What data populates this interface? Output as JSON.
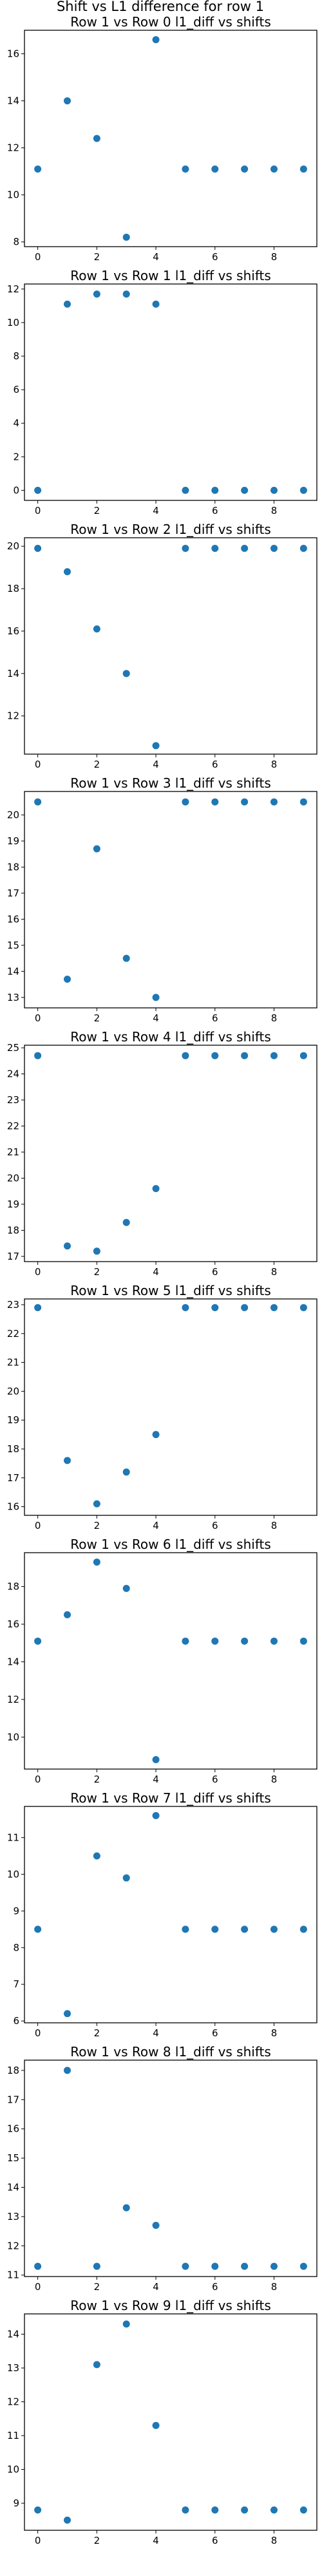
{
  "figure": {
    "suptitle": "Shift vs L1 difference for row 1"
  },
  "chart_data": [
    {
      "type": "scatter",
      "title": "Row 1 vs Row 0 l1_diff vs shifts",
      "xlabel": "",
      "ylabel": "",
      "x": [
        0,
        1,
        2,
        3,
        4,
        5,
        6,
        7,
        8,
        9
      ],
      "y": [
        11.1,
        14.0,
        12.4,
        8.2,
        16.6,
        11.1,
        11.1,
        11.1,
        11.1,
        11.1
      ],
      "xlim": [
        -0.45,
        9.45
      ],
      "ylim": [
        7.8,
        17.0
      ],
      "xticks": [
        0,
        2,
        4,
        6,
        8
      ],
      "yticks": [
        8,
        10,
        12,
        14,
        16
      ],
      "xtick_labels": [
        "0",
        "2",
        "4",
        "6",
        "8"
      ],
      "ytick_labels": [
        "8",
        "10",
        "12",
        "14",
        "16"
      ],
      "color": "#1f77b4"
    },
    {
      "type": "scatter",
      "title": "Row 1 vs Row 1 l1_diff vs shifts",
      "xlabel": "",
      "ylabel": "",
      "x": [
        0,
        1,
        2,
        3,
        4,
        5,
        6,
        7,
        8,
        9
      ],
      "y": [
        0,
        11.1,
        11.7,
        11.7,
        11.1,
        0,
        0,
        0,
        0,
        0
      ],
      "xlim": [
        -0.45,
        9.45
      ],
      "ylim": [
        -0.6,
        12.3
      ],
      "xticks": [
        0,
        2,
        4,
        6,
        8
      ],
      "yticks": [
        0,
        2,
        4,
        6,
        8,
        10,
        12
      ],
      "xtick_labels": [
        "0",
        "2",
        "4",
        "6",
        "8"
      ],
      "ytick_labels": [
        "0",
        "2",
        "4",
        "6",
        "8",
        "10",
        "12"
      ],
      "color": "#1f77b4"
    },
    {
      "type": "scatter",
      "title": "Row 1 vs Row 2 l1_diff vs shifts",
      "xlabel": "",
      "ylabel": "",
      "x": [
        0,
        1,
        2,
        3,
        4,
        5,
        6,
        7,
        8,
        9
      ],
      "y": [
        19.9,
        18.8,
        16.1,
        14.0,
        10.6,
        19.9,
        19.9,
        19.9,
        19.9,
        19.9
      ],
      "xlim": [
        -0.45,
        9.45
      ],
      "ylim": [
        10.2,
        20.4
      ],
      "xticks": [
        0,
        2,
        4,
        6,
        8
      ],
      "yticks": [
        12,
        14,
        16,
        18,
        20
      ],
      "xtick_labels": [
        "0",
        "2",
        "4",
        "6",
        "8"
      ],
      "ytick_labels": [
        "12",
        "14",
        "16",
        "18",
        "20"
      ],
      "color": "#1f77b4"
    },
    {
      "type": "scatter",
      "title": "Row 1 vs Row 3 l1_diff vs shifts",
      "xlabel": "",
      "ylabel": "",
      "x": [
        0,
        1,
        2,
        3,
        4,
        5,
        6,
        7,
        8,
        9
      ],
      "y": [
        20.5,
        13.7,
        18.7,
        14.5,
        13.0,
        20.5,
        20.5,
        20.5,
        20.5,
        20.5
      ],
      "xlim": [
        -0.45,
        9.45
      ],
      "ylim": [
        12.6,
        20.9
      ],
      "xticks": [
        0,
        2,
        4,
        6,
        8
      ],
      "yticks": [
        13,
        14,
        15,
        16,
        17,
        18,
        19,
        20
      ],
      "xtick_labels": [
        "0",
        "2",
        "4",
        "6",
        "8"
      ],
      "ytick_labels": [
        "13",
        "14",
        "15",
        "16",
        "17",
        "18",
        "19",
        "20"
      ],
      "color": "#1f77b4"
    },
    {
      "type": "scatter",
      "title": "Row 1 vs Row 4 l1_diff vs shifts",
      "xlabel": "",
      "ylabel": "",
      "x": [
        0,
        1,
        2,
        3,
        4,
        5,
        6,
        7,
        8,
        9
      ],
      "y": [
        24.7,
        17.4,
        17.2,
        18.3,
        19.6,
        24.7,
        24.7,
        24.7,
        24.7,
        24.7
      ],
      "xlim": [
        -0.45,
        9.45
      ],
      "ylim": [
        16.8,
        25.1
      ],
      "xticks": [
        0,
        2,
        4,
        6,
        8
      ],
      "yticks": [
        17,
        18,
        19,
        20,
        21,
        22,
        23,
        24,
        25
      ],
      "xtick_labels": [
        "0",
        "2",
        "4",
        "6",
        "8"
      ],
      "ytick_labels": [
        "17",
        "18",
        "19",
        "20",
        "21",
        "22",
        "23",
        "24",
        "25"
      ],
      "color": "#1f77b4"
    },
    {
      "type": "scatter",
      "title": "Row 1 vs Row 5 l1_diff vs shifts",
      "xlabel": "",
      "ylabel": "",
      "x": [
        0,
        1,
        2,
        3,
        4,
        5,
        6,
        7,
        8,
        9
      ],
      "y": [
        22.9,
        17.6,
        16.1,
        17.2,
        18.5,
        22.9,
        22.9,
        22.9,
        22.9,
        22.9
      ],
      "xlim": [
        -0.45,
        9.45
      ],
      "ylim": [
        15.7,
        23.2
      ],
      "xticks": [
        0,
        2,
        4,
        6,
        8
      ],
      "yticks": [
        16,
        17,
        18,
        19,
        20,
        21,
        22,
        23
      ],
      "xtick_labels": [
        "0",
        "2",
        "4",
        "6",
        "8"
      ],
      "ytick_labels": [
        "16",
        "17",
        "18",
        "19",
        "20",
        "21",
        "22",
        "23"
      ],
      "color": "#1f77b4"
    },
    {
      "type": "scatter",
      "title": "Row 1 vs Row 6 l1_diff vs shifts",
      "xlabel": "",
      "ylabel": "",
      "x": [
        0,
        1,
        2,
        3,
        4,
        5,
        6,
        7,
        8,
        9
      ],
      "y": [
        15.1,
        16.5,
        19.3,
        17.9,
        8.8,
        15.1,
        15.1,
        15.1,
        15.1,
        15.1
      ],
      "xlim": [
        -0.45,
        9.45
      ],
      "ylim": [
        8.3,
        19.8
      ],
      "xticks": [
        0,
        2,
        4,
        6,
        8
      ],
      "yticks": [
        10,
        12,
        14,
        16,
        18
      ],
      "xtick_labels": [
        "0",
        "2",
        "4",
        "6",
        "8"
      ],
      "ytick_labels": [
        "10",
        "12",
        "14",
        "16",
        "18"
      ],
      "color": "#1f77b4"
    },
    {
      "type": "scatter",
      "title": "Row 1 vs Row 7 l1_diff vs shifts",
      "xlabel": "",
      "ylabel": "",
      "x": [
        0,
        1,
        2,
        3,
        4,
        5,
        6,
        7,
        8,
        9
      ],
      "y": [
        8.5,
        6.2,
        10.5,
        9.9,
        11.6,
        8.5,
        8.5,
        8.5,
        8.5,
        8.5
      ],
      "xlim": [
        -0.45,
        9.45
      ],
      "ylim": [
        5.95,
        11.85
      ],
      "xticks": [
        0,
        2,
        4,
        6,
        8
      ],
      "yticks": [
        6,
        7,
        8,
        9,
        10,
        11
      ],
      "xtick_labels": [
        "0",
        "2",
        "4",
        "6",
        "8"
      ],
      "ytick_labels": [
        "6",
        "7",
        "8",
        "9",
        "10",
        "11"
      ],
      "color": "#1f77b4"
    },
    {
      "type": "scatter",
      "title": "Row 1 vs Row 8 l1_diff vs shifts",
      "xlabel": "",
      "ylabel": "",
      "x": [
        0,
        1,
        2,
        3,
        4,
        5,
        6,
        7,
        8,
        9
      ],
      "y": [
        11.3,
        18.0,
        11.3,
        13.3,
        12.7,
        11.3,
        11.3,
        11.3,
        11.3,
        11.3
      ],
      "xlim": [
        -0.45,
        9.45
      ],
      "ylim": [
        10.95,
        18.35
      ],
      "xticks": [
        0,
        2,
        4,
        6,
        8
      ],
      "yticks": [
        11,
        12,
        13,
        14,
        15,
        16,
        17,
        18
      ],
      "xtick_labels": [
        "0",
        "2",
        "4",
        "6",
        "8"
      ],
      "ytick_labels": [
        "11",
        "12",
        "13",
        "14",
        "15",
        "16",
        "17",
        "18"
      ],
      "color": "#1f77b4"
    },
    {
      "type": "scatter",
      "title": "Row 1 vs Row 9 l1_diff vs shifts",
      "xlabel": "",
      "ylabel": "",
      "x": [
        0,
        1,
        2,
        3,
        4,
        5,
        6,
        7,
        8,
        9
      ],
      "y": [
        8.8,
        8.5,
        13.1,
        14.3,
        11.3,
        8.8,
        8.8,
        8.8,
        8.8,
        8.8
      ],
      "xlim": [
        -0.45,
        9.45
      ],
      "ylim": [
        8.2,
        14.6
      ],
      "xticks": [
        0,
        2,
        4,
        6,
        8
      ],
      "yticks": [
        9,
        10,
        11,
        12,
        13,
        14
      ],
      "xtick_labels": [
        "0",
        "2",
        "4",
        "6",
        "8"
      ],
      "ytick_labels": [
        "9",
        "10",
        "11",
        "12",
        "13",
        "14"
      ],
      "color": "#1f77b4"
    }
  ]
}
